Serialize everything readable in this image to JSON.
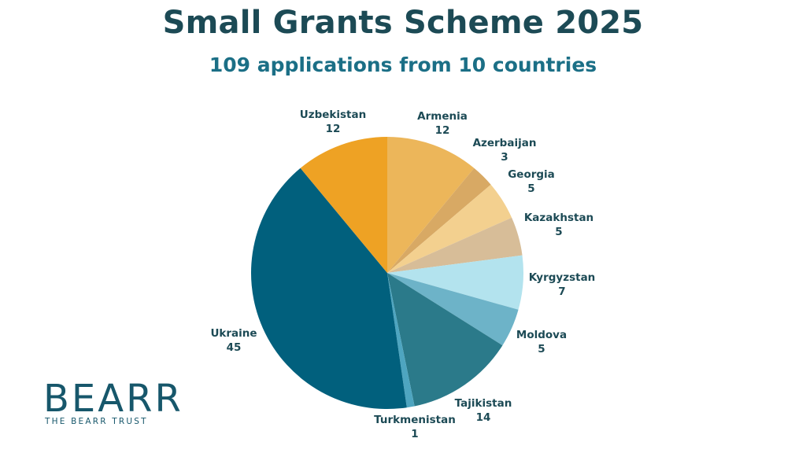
{
  "header": {
    "title": "Small Grants Scheme 2025",
    "subtitle": "109 applications from 10 countries"
  },
  "chart_data": {
    "type": "pie",
    "title": "Small Grants Scheme 2025",
    "subtitle": "109 applications from 10 countries",
    "total": 109,
    "slices": [
      {
        "label": "Armenia",
        "value": 12,
        "color": "#ecb65a"
      },
      {
        "label": "Azerbaijan",
        "value": 3,
        "color": "#d8a964"
      },
      {
        "label": "Georgia",
        "value": 5,
        "color": "#f3d08f"
      },
      {
        "label": "Kazakhstan",
        "value": 5,
        "color": "#d7bd98"
      },
      {
        "label": "Kyrgyzstan",
        "value": 7,
        "color": "#b3e3ee"
      },
      {
        "label": "Moldova",
        "value": 5,
        "color": "#6db3c8"
      },
      {
        "label": "Tajikistan",
        "value": 14,
        "color": "#2b7a8a"
      },
      {
        "label": "Turkmenistan",
        "value": 1,
        "color": "#4ea5c0"
      },
      {
        "label": "Ukraine",
        "value": 45,
        "color": "#01607d"
      },
      {
        "label": "Uzbekistan",
        "value": 12,
        "color": "#eea224"
      }
    ]
  },
  "logo": {
    "word": "BEARR",
    "tagline": "THE BEARR TRUST"
  }
}
